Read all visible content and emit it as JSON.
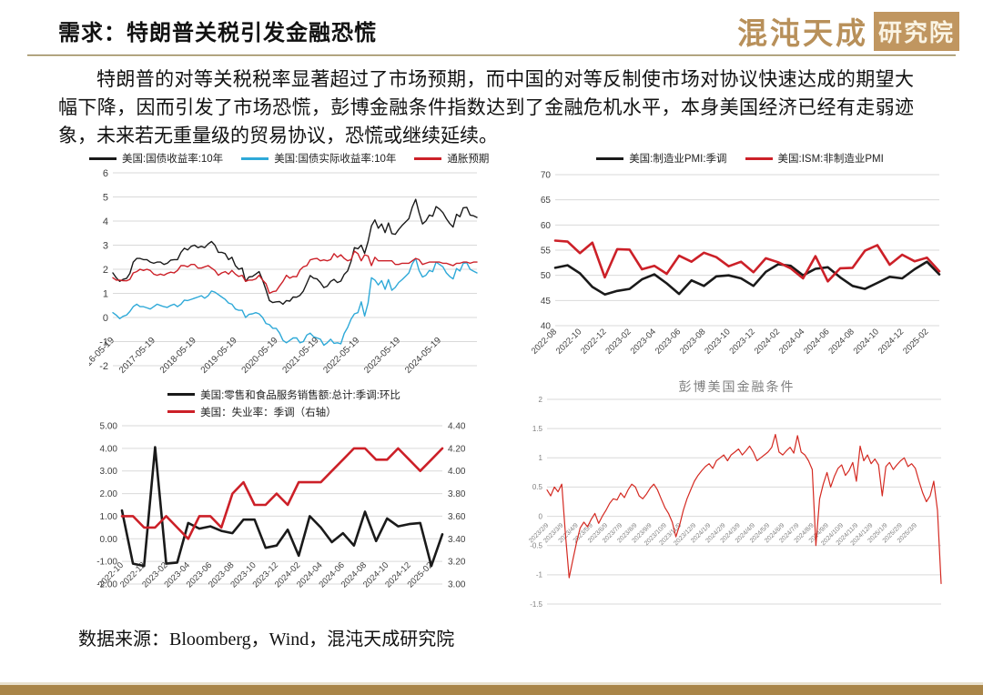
{
  "header": {
    "title": "需求：特朗普关税引发金融恐慌",
    "logo_main": "混沌天成",
    "logo_badge": "研究院"
  },
  "body_paragraph": "特朗普的对等关税税率显著超过了市场预期，而中国的对等反制使市场对协议快速达成的期望大幅下降，因而引发了市场恐慌，彭博金融条件指数达到了金融危机水平，本身美国经济已经有走弱迹象，未来若无重量级的贸易协议，恐慌或继续延续。",
  "footer": {
    "source": "数据来源：Bloomberg，Wind，混沌天成研究院"
  },
  "colors": {
    "accent_tan": "#a98548",
    "header_rule": "#8f7d4f",
    "black_line": "#1a1a1a",
    "red_line": "#cc2028",
    "blue_line": "#2ea9d8",
    "grid": "#d9d9d9"
  },
  "chart_data": [
    {
      "id": "us-treasury-yields",
      "type": "line",
      "title": "",
      "xlabel": "",
      "ylabel": "",
      "legend_layout": "row",
      "legend": [
        {
          "label": "美国:国债收益率:10年",
          "color": "#1a1a1a"
        },
        {
          "label": "美国:国债实际收益率:10年",
          "color": "#2ea9d8"
        },
        {
          "label": "通胀预期",
          "color": "#cc2028"
        }
      ],
      "ylim": [
        -2,
        6
      ],
      "ytick_vals": [
        6,
        5,
        4,
        3,
        2,
        1,
        0,
        -1,
        -2
      ],
      "ytick_labels": [
        "6",
        "5",
        "4",
        "3",
        "2",
        "1",
        "0",
        "-1",
        "-2"
      ],
      "xlabel_at": -0.7,
      "xticks": {
        "start": 0,
        "step": 12,
        "labels": [
          "2016-05-19",
          "2017-05-19",
          "2018-05-19",
          "2019-05-19",
          "2020-05-19",
          "2021-05-19",
          "2022-05-19",
          "2023-05-19",
          "2024-05-19"
        ]
      },
      "series": [
        {
          "name": "us-10y-nominal-yield",
          "color": "#1a1a1a",
          "width": 1.4,
          "values": [
            1.85,
            1.65,
            1.5,
            1.58,
            1.62,
            1.83,
            2.3,
            2.45,
            2.45,
            2.4,
            2.4,
            2.3,
            2.25,
            2.3,
            2.3,
            2.2,
            2.25,
            2.38,
            2.4,
            2.4,
            2.7,
            2.87,
            2.8,
            2.95,
            3.0,
            2.9,
            2.95,
            2.9,
            3.05,
            3.15,
            3.0,
            2.7,
            2.7,
            2.65,
            2.4,
            2.5,
            2.15,
            2.0,
            2.05,
            1.5,
            1.68,
            1.7,
            1.8,
            1.9,
            1.55,
            1.15,
            0.7,
            0.62,
            0.65,
            0.66,
            0.55,
            0.7,
            0.68,
            0.85,
            0.84,
            0.92,
            1.1,
            1.42,
            1.74,
            1.63,
            1.6,
            1.45,
            1.24,
            1.3,
            1.5,
            1.58,
            1.45,
            1.51,
            1.79,
            1.93,
            2.33,
            2.9,
            2.85,
            3.0,
            2.66,
            3.15,
            3.8,
            4.05,
            3.7,
            3.88,
            3.52,
            3.92,
            3.48,
            3.45,
            3.65,
            3.82,
            3.96,
            4.1,
            4.58,
            4.9,
            4.35,
            3.88,
            4.0,
            4.25,
            4.2,
            4.6,
            4.5,
            4.35,
            4.1,
            3.9,
            3.75,
            4.28,
            4.18,
            4.55,
            4.57,
            4.25,
            4.22,
            4.15
          ]
        },
        {
          "name": "us-10y-real-yield",
          "color": "#2ea9d8",
          "width": 1.4,
          "values": [
            0.2,
            0.1,
            -0.05,
            0.05,
            0.1,
            0.25,
            0.45,
            0.55,
            0.45,
            0.45,
            0.4,
            0.35,
            0.45,
            0.55,
            0.5,
            0.45,
            0.42,
            0.5,
            0.55,
            0.45,
            0.55,
            0.72,
            0.7,
            0.75,
            0.8,
            0.85,
            0.9,
            0.8,
            0.9,
            1.1,
            1.05,
            0.95,
            0.85,
            0.75,
            0.6,
            0.55,
            0.35,
            0.3,
            0.3,
            0.0,
            0.13,
            0.15,
            0.2,
            0.15,
            0.0,
            -0.25,
            -0.3,
            -0.45,
            -0.45,
            -0.65,
            -0.95,
            -1.05,
            -0.95,
            -0.85,
            -0.85,
            -1.05,
            -1.0,
            -0.73,
            -0.65,
            -0.8,
            -0.85,
            -0.9,
            -1.15,
            -1.05,
            -0.9,
            -1.07,
            -1.05,
            -1.09,
            -0.66,
            -0.42,
            -0.07,
            0.15,
            0.2,
            0.65,
            0.06,
            0.6,
            1.65,
            1.55,
            1.35,
            1.53,
            1.17,
            1.57,
            1.13,
            1.25,
            1.45,
            1.57,
            1.71,
            1.85,
            2.23,
            2.45,
            1.95,
            1.68,
            1.75,
            1.95,
            1.9,
            2.3,
            2.2,
            2.1,
            1.85,
            1.7,
            1.6,
            2.03,
            1.93,
            2.25,
            2.27,
            2.0,
            1.92,
            1.85
          ]
        },
        {
          "name": "inflation-expectation",
          "color": "#cc2028",
          "width": 1.4,
          "values": [
            1.65,
            1.55,
            1.55,
            1.53,
            1.52,
            1.58,
            1.85,
            1.9,
            2.0,
            1.95,
            2.0,
            1.95,
            1.8,
            1.75,
            1.8,
            1.75,
            1.83,
            1.88,
            1.85,
            1.95,
            2.15,
            2.15,
            2.1,
            2.2,
            2.2,
            2.05,
            2.05,
            2.1,
            2.15,
            2.05,
            1.95,
            1.75,
            1.85,
            1.9,
            1.8,
            1.95,
            1.8,
            1.7,
            1.75,
            1.5,
            1.55,
            1.55,
            1.6,
            1.75,
            1.55,
            1.4,
            1.0,
            1.07,
            1.1,
            1.31,
            1.5,
            1.75,
            1.63,
            1.7,
            1.69,
            1.97,
            2.1,
            2.15,
            2.39,
            2.43,
            2.45,
            2.35,
            2.39,
            2.35,
            2.4,
            2.65,
            2.5,
            2.6,
            2.45,
            2.35,
            2.4,
            2.75,
            2.65,
            2.35,
            2.6,
            2.55,
            2.15,
            2.5,
            2.35,
            2.35,
            2.35,
            2.35,
            2.35,
            2.2,
            2.2,
            2.25,
            2.25,
            2.25,
            2.35,
            2.45,
            2.4,
            2.2,
            2.25,
            2.3,
            2.3,
            2.3,
            2.3,
            2.25,
            2.25,
            2.2,
            2.15,
            2.25,
            2.25,
            2.3,
            2.3,
            2.25,
            2.3,
            2.3
          ]
        }
      ]
    },
    {
      "id": "us-pmi",
      "type": "line",
      "title": "",
      "xlabel": "",
      "ylabel": "",
      "legend_layout": "row",
      "legend": [
        {
          "label": "美国:制造业PMI:季调",
          "color": "#1a1a1a"
        },
        {
          "label": "美国:ISM:非制造业PMI",
          "color": "#cc2028"
        }
      ],
      "ylim": [
        40,
        70
      ],
      "ytick_vals": [
        70,
        65,
        60,
        55,
        50,
        45,
        40
      ],
      "ytick_labels": [
        "70",
        "65",
        "60",
        "55",
        "50",
        "45",
        "40"
      ],
      "xlabel_at": null,
      "xticks": {
        "start": 0,
        "step": 2,
        "labels": [
          "2022-08",
          "2022-10",
          "2022-12",
          "2023-02",
          "2023-04",
          "2023-06",
          "2023-08",
          "2023-10",
          "2023-12",
          "2024-02",
          "2024-04",
          "2024-06",
          "2024-08",
          "2024-10",
          "2024-12",
          "2025-02"
        ]
      },
      "series": [
        {
          "name": "manufacturing-pmi",
          "color": "#1a1a1a",
          "width": 2.6,
          "values": [
            51.5,
            52.0,
            50.4,
            47.7,
            46.2,
            46.9,
            47.3,
            49.2,
            50.2,
            48.4,
            46.3,
            49.0,
            47.9,
            49.8,
            50.0,
            49.4,
            47.9,
            50.7,
            52.2,
            51.9,
            50.0,
            51.3,
            51.6,
            49.6,
            47.9,
            47.3,
            48.5,
            49.7,
            49.4,
            51.2,
            52.7,
            50.2
          ]
        },
        {
          "name": "ism-non-manufacturing-pmi",
          "color": "#cc2028",
          "width": 2.6,
          "values": [
            56.9,
            56.7,
            54.4,
            56.5,
            49.6,
            55.2,
            55.1,
            51.2,
            51.9,
            50.3,
            53.9,
            52.7,
            54.5,
            53.6,
            51.8,
            52.7,
            50.6,
            53.4,
            52.6,
            51.4,
            49.4,
            53.8,
            48.8,
            51.4,
            51.5,
            54.9,
            56.0,
            52.1,
            54.1,
            52.8,
            53.5,
            50.8
          ]
        }
      ]
    },
    {
      "id": "us-retail-unemployment",
      "type": "line",
      "title": "",
      "xlabel": "",
      "ylabel": "",
      "legend_layout": "column",
      "legend": [
        {
          "label": "美国:零售和食品服务销售额:总计:季调:环比",
          "color": "#1a1a1a"
        },
        {
          "label": "美国：失业率：季调（右轴）",
          "color": "#cc2028"
        }
      ],
      "ylim": [
        -2,
        5
      ],
      "ytick_vals": [
        5,
        4,
        3,
        2,
        1,
        0,
        -1,
        -2
      ],
      "ytick_labels": [
        "5.00",
        "4.00",
        "3.00",
        "2.00",
        "1.00",
        "0.00",
        "-1.00",
        "-2.00"
      ],
      "right_axis": {
        "ylim": [
          3.0,
          4.4
        ],
        "ytick_vals": [
          4.4,
          4.2,
          4.0,
          3.8,
          3.6,
          3.4,
          3.2,
          3.0
        ],
        "ytick_labels": [
          "4.40",
          "4.20",
          "4.00",
          "3.80",
          "3.60",
          "3.40",
          "3.20",
          "3.00"
        ]
      },
      "xlabel_at": -0.9,
      "xticks": {
        "start": 0,
        "step": 2,
        "labels": [
          "2022-10",
          "2022-12",
          "2023-02",
          "2023-04",
          "2023-06",
          "2023-08",
          "2023-10",
          "2023-12",
          "2024-02",
          "2024-04",
          "2024-06",
          "2024-08",
          "2024-10",
          "2024-12",
          "2025-02"
        ]
      },
      "series": [
        {
          "name": "retail-sales-mom",
          "color": "#1a1a1a",
          "width": 2.6,
          "values": [
            1.25,
            -1.1,
            -1.2,
            4.05,
            -1.1,
            -1.05,
            0.7,
            0.45,
            0.55,
            0.35,
            0.25,
            0.85,
            0.85,
            -0.4,
            -0.3,
            0.4,
            -0.75,
            1.0,
            0.5,
            -0.15,
            0.25,
            -0.3,
            1.2,
            -0.1,
            0.9,
            0.55,
            0.65,
            0.7,
            -1.2,
            0.2
          ]
        },
        {
          "name": "unemployment-rate",
          "color": "#cc2028",
          "width": 2.6,
          "axis": "right",
          "values": [
            3.6,
            3.6,
            3.5,
            3.5,
            3.6,
            3.5,
            3.4,
            3.6,
            3.6,
            3.5,
            3.8,
            3.9,
            3.7,
            3.7,
            3.8,
            3.7,
            3.9,
            3.9,
            3.9,
            4.0,
            4.1,
            4.2,
            4.2,
            4.1,
            4.1,
            4.2,
            4.1,
            4.0,
            4.1,
            4.2
          ]
        }
      ]
    },
    {
      "id": "bloomberg-us-financial-conditions",
      "type": "line",
      "title": "彭博美国金融条件",
      "xlabel": "",
      "ylabel": "",
      "legend_layout": "row",
      "legend": null,
      "tick_color": "#808080",
      "ylim": [
        -1.5,
        2
      ],
      "ytick_vals": [
        2,
        1.5,
        1,
        0.5,
        0,
        -0.5,
        -1,
        -1.5
      ],
      "ytick_labels": [
        "2",
        "1.5",
        "1",
        "0.5",
        "0",
        "-0.5",
        "-1",
        "-1.5"
      ],
      "xlabel_at": -0.05,
      "xticks": {
        "start": 0,
        "step": 4,
        "labels": [
          "2023/2/9",
          "2023/3/9",
          "2023/4/9",
          "2023/5/9",
          "2023/6/9",
          "2023/7/9",
          "2023/8/9",
          "2023/9/9",
          "2023/10/9",
          "2023/11/9",
          "2023/12/9",
          "2024/1/9",
          "2024/2/9",
          "2024/3/9",
          "2024/4/9",
          "2024/5/9",
          "2024/6/9",
          "2024/7/9",
          "2024/8/9",
          "2024/9/9",
          "2024/10/9",
          "2024/11/9",
          "2024/12/9",
          "2025/1/9",
          "2025/2/9",
          "2025/3/9"
        ]
      },
      "series": [
        {
          "name": "financial-conditions-index",
          "color": "#d42a22",
          "width": 1.2,
          "values": [
            0.45,
            0.35,
            0.5,
            0.42,
            0.55,
            -0.3,
            -1.05,
            -0.75,
            -0.45,
            -0.2,
            -0.1,
            -0.18,
            -0.05,
            0.05,
            -0.12,
            0.0,
            0.1,
            0.22,
            0.3,
            0.28,
            0.4,
            0.32,
            0.45,
            0.55,
            0.5,
            0.35,
            0.3,
            0.38,
            0.48,
            0.55,
            0.45,
            0.3,
            0.15,
            0.05,
            -0.1,
            -0.35,
            -0.15,
            0.1,
            0.3,
            0.45,
            0.6,
            0.7,
            0.78,
            0.85,
            0.9,
            0.82,
            0.95,
            1.0,
            1.05,
            0.95,
            1.05,
            1.1,
            1.15,
            1.05,
            1.12,
            1.2,
            1.1,
            0.95,
            1.0,
            1.05,
            1.1,
            1.18,
            1.4,
            1.1,
            1.05,
            1.12,
            1.18,
            1.08,
            1.38,
            1.1,
            1.05,
            0.95,
            0.8,
            -0.5,
            0.3,
            0.55,
            0.75,
            0.5,
            0.68,
            0.82,
            0.88,
            0.7,
            0.78,
            0.92,
            0.6,
            1.2,
            0.95,
            1.05,
            0.9,
            0.98,
            0.88,
            0.35,
            0.85,
            0.92,
            0.8,
            0.88,
            0.95,
            1.0,
            0.85,
            0.9,
            0.82,
            0.6,
            0.4,
            0.25,
            0.35,
            0.6,
            0.1,
            -1.15
          ]
        }
      ]
    }
  ]
}
